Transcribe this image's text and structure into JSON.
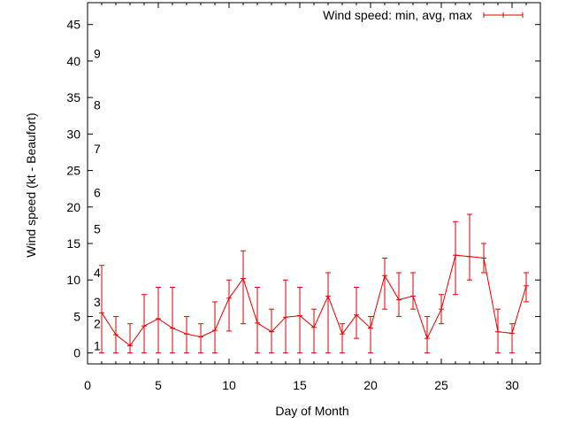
{
  "chart_data": {
    "type": "line",
    "xlabel": "Day of Month",
    "ylabel": "Wind speed (kt - Beaufort)",
    "xlim": [
      0,
      32
    ],
    "ylim": [
      -1.5,
      48
    ],
    "x_ticks": [
      0,
      5,
      10,
      15,
      20,
      25,
      30
    ],
    "y_ticks": [
      0,
      5,
      10,
      15,
      20,
      25,
      30,
      35,
      40,
      45
    ],
    "beaufort_labels": [
      {
        "label": "1",
        "value": 1
      },
      {
        "label": "2",
        "value": 4
      },
      {
        "label": "3",
        "value": 7
      },
      {
        "label": "4",
        "value": 11
      },
      {
        "label": "5",
        "value": 17
      },
      {
        "label": "6",
        "value": 22
      },
      {
        "label": "7",
        "value": 28
      },
      {
        "label": "8",
        "value": 34
      },
      {
        "label": "9",
        "value": 41
      }
    ],
    "grid": false,
    "legend_position": "top-right",
    "series": [
      {
        "name": "Wind speed: min, avg, max",
        "color": "#e00000",
        "x": [
          1,
          2,
          3,
          4,
          5,
          6,
          7,
          8,
          9,
          10,
          11,
          12,
          13,
          14,
          15,
          16,
          17,
          18,
          19,
          20,
          21,
          22,
          23,
          24,
          25,
          26,
          27,
          28,
          29,
          30,
          31
        ],
        "avg": [
          5.5,
          2.5,
          1.0,
          3.7,
          4.7,
          3.4,
          2.6,
          2.2,
          3.1,
          7.5,
          10.2,
          4.1,
          2.9,
          4.9,
          5.1,
          3.5,
          7.8,
          2.6,
          5.2,
          3.4,
          10.6,
          7.3,
          7.8,
          2.0,
          6.0,
          13.4,
          13.2,
          13.0,
          2.9,
          2.7,
          9.2
        ],
        "min": [
          0,
          0,
          0,
          0,
          0,
          0,
          0,
          0,
          0,
          3,
          4,
          0,
          0,
          0,
          0,
          0,
          0,
          0,
          2,
          0,
          6,
          5,
          6,
          0,
          4,
          8,
          10,
          11,
          0,
          0,
          7
        ],
        "max": [
          12,
          5,
          4,
          8,
          9,
          9,
          5,
          4,
          7,
          10,
          14,
          9,
          6,
          10,
          9,
          6,
          11,
          4,
          9,
          5,
          13,
          11,
          11,
          5,
          8,
          18,
          19,
          15,
          6,
          4,
          11
        ]
      }
    ]
  }
}
